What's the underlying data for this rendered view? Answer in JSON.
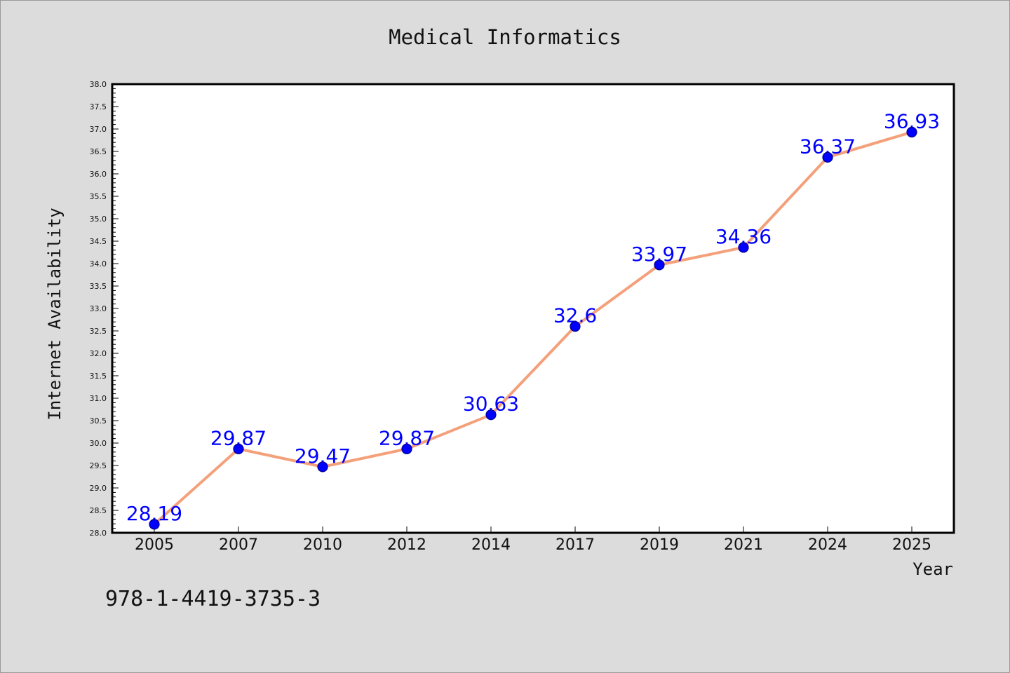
{
  "colors": {
    "background": "#dcdcdc",
    "plot_background": "#ffffff",
    "axis": "#000000",
    "line": "#f4a07a",
    "marker": "#0000ff",
    "marker_edge": "#00008b",
    "data_label": "#0000ff"
  },
  "chart_data": {
    "type": "line",
    "title": "Medical Informatics",
    "xlabel": "Year",
    "ylabel": "Internet Availability",
    "categories": [
      "2005",
      "2007",
      "2010",
      "2012",
      "2014",
      "2017",
      "2019",
      "2021",
      "2024",
      "2025"
    ],
    "series": [
      {
        "values": [
          28.19,
          29.87,
          29.47,
          29.87,
          30.63,
          32.6,
          33.97,
          34.36,
          36.37,
          36.93
        ]
      }
    ],
    "ylim": [
      28.0,
      38.0
    ],
    "ytick_labels": [
      "28.0",
      "28.5",
      "29.0",
      "29.5",
      "30.0",
      "30.5",
      "31.0",
      "31.5",
      "32.0",
      "32.5",
      "33.0",
      "33.5",
      "34.0",
      "34.5",
      "35.0",
      "35.5",
      "36.0",
      "36.5",
      "37.0",
      "37.5",
      "38.0"
    ],
    "data_labels": true,
    "grid": false,
    "legend": "none",
    "annotations": [
      "978-1-4419-3735-3"
    ]
  }
}
